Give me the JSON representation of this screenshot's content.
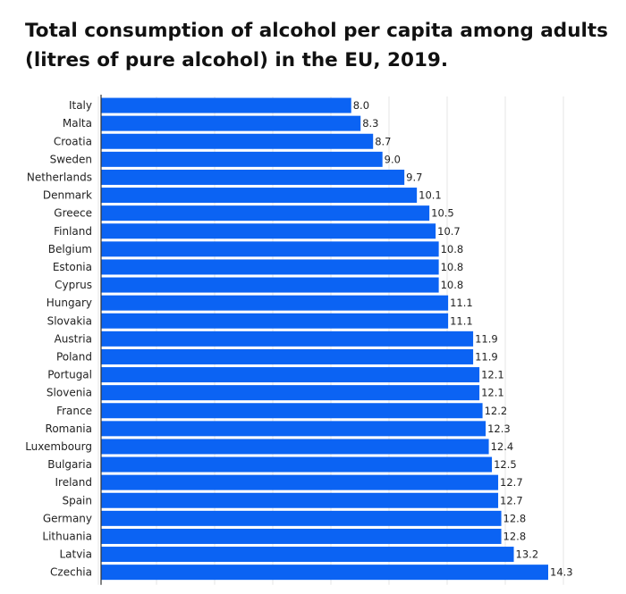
{
  "chart_data": {
    "type": "bar",
    "orientation": "horizontal",
    "title": "Total consumption of alcohol per capita among adults (litres of pure alcohol) in the EU, 2019.",
    "categories": [
      "Italy",
      "Malta",
      "Croatia",
      "Sweden",
      "Netherlands",
      "Denmark",
      "Greece",
      "Finland",
      "Belgium",
      "Estonia",
      "Cyprus",
      "Hungary",
      "Slovakia",
      "Austria",
      "Poland",
      "Portugal",
      "Slovenia",
      "France",
      "Romania",
      "Luxembourg",
      "Bulgaria",
      "Ireland",
      "Spain",
      "Germany",
      "Lithuania",
      "Latvia",
      "Czechia"
    ],
    "values": [
      8.0,
      8.3,
      8.7,
      9.0,
      9.7,
      10.1,
      10.5,
      10.7,
      10.8,
      10.8,
      10.8,
      11.1,
      11.1,
      11.9,
      11.9,
      12.1,
      12.1,
      12.2,
      12.3,
      12.4,
      12.5,
      12.7,
      12.7,
      12.8,
      12.8,
      13.2,
      14.3
    ],
    "value_labels": [
      "8.0",
      "8.3",
      "8.7",
      "9.0",
      "9.7",
      "10.1",
      "10.5",
      "10.7",
      "10.8",
      "10.8",
      "10.8",
      "11.1",
      "11.1",
      "11.9",
      "11.9",
      "12.1",
      "12.1",
      "12.2",
      "12.3",
      "12.4",
      "12.5",
      "12.7",
      "12.7",
      "12.8",
      "12.8",
      "13.2",
      "14.3"
    ],
    "xlim": [
      0,
      14.3
    ],
    "grid": true,
    "legend": "none",
    "bar_color": "#0b63f3",
    "grid_color": "#e6e6e6"
  }
}
